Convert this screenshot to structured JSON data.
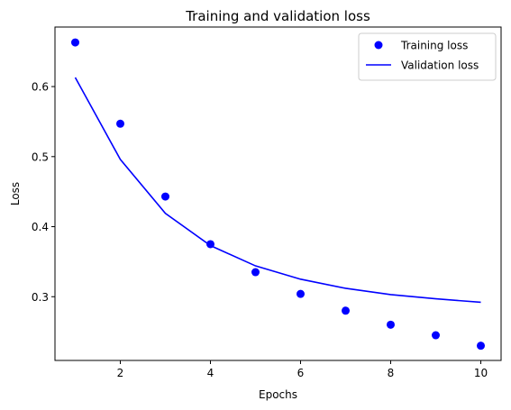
{
  "chart_data": {
    "type": "line",
    "title": "Training and validation loss",
    "xlabel": "Epochs",
    "ylabel": "Loss",
    "xlim": [
      0.55,
      10.45
    ],
    "ylim": [
      0.209,
      0.685
    ],
    "xticks": [
      2,
      4,
      6,
      8,
      10
    ],
    "yticks": [
      0.3,
      0.4,
      0.5,
      0.6
    ],
    "grid": false,
    "legend_position": "top-right",
    "series": [
      {
        "name": "Training loss",
        "style": "scatter",
        "color": "#0000ff",
        "x": [
          1,
          2,
          3,
          4,
          5,
          6,
          7,
          8,
          9,
          10
        ],
        "y": [
          0.663,
          0.547,
          0.443,
          0.375,
          0.335,
          0.304,
          0.28,
          0.26,
          0.245,
          0.23
        ]
      },
      {
        "name": "Validation loss",
        "style": "line",
        "color": "#0000ff",
        "x": [
          1,
          2,
          3,
          4,
          5,
          6,
          7,
          8,
          9,
          10
        ],
        "y": [
          0.613,
          0.496,
          0.419,
          0.373,
          0.344,
          0.325,
          0.312,
          0.303,
          0.297,
          0.292
        ]
      }
    ]
  }
}
